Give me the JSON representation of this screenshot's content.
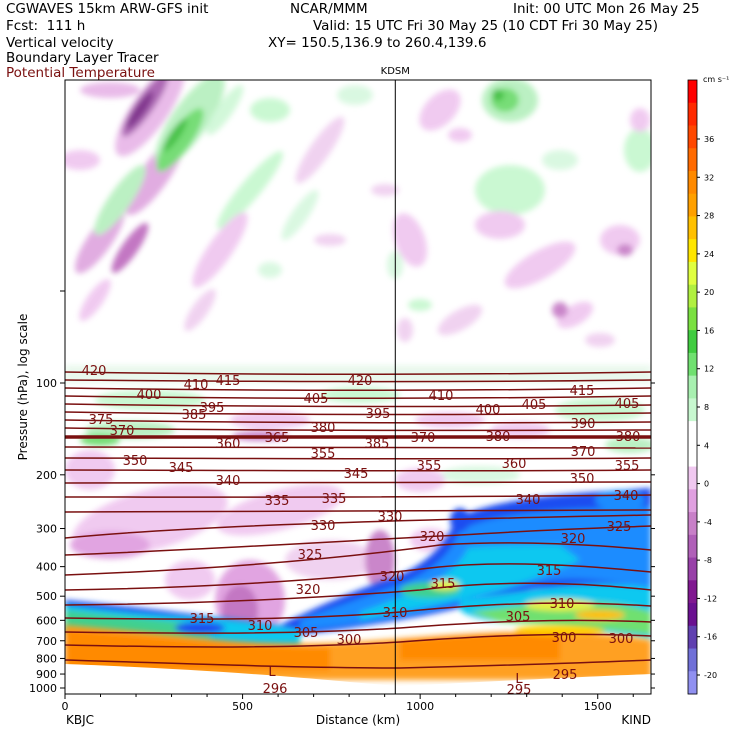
{
  "header": {
    "model": "CGWAVES 15km ARW-GFS init",
    "center": "NCAR/MMM",
    "init": "Init: 00 UTC Mon 26 May 25",
    "fcst": "Fcst:  111 h",
    "valid": "Valid: 15 UTC Fri 30 May 25 (10 CDT Fri 30 May 25)",
    "field1": "Vertical velocity",
    "field2": "Boundary Layer Tracer",
    "field3": "Potential Temperature",
    "xy": "XY= 150.5,136.9 to 260.4,139.6",
    "field3_color": "#7a1010"
  },
  "chart_data": {
    "type": "cross-section",
    "station_label": "KDSM",
    "station_x": 930,
    "ylabel": "Pressure (hPa), log scale",
    "xlabel": "Distance (km)",
    "xlim": [
      0,
      1650
    ],
    "x_ticks": [
      "0",
      "500",
      "1000",
      "1500"
    ],
    "y_ticks": [
      "100",
      "200",
      "300",
      "400",
      "500",
      "600",
      "700",
      "800",
      "900",
      "1000"
    ],
    "left_end_label": "KBJC",
    "right_end_label": "KIND",
    "colorbar": {
      "unit": "cm s⁻¹",
      "labels": [
        "36",
        "32",
        "28",
        "24",
        "20",
        "16",
        "12",
        "8",
        "4",
        "0",
        "-4",
        "-8",
        "-12",
        "-16",
        "-20"
      ],
      "colors": [
        "#ff0000",
        "#ff2a00",
        "#ff4800",
        "#ff6a00",
        "#ff8a00",
        "#ffa000",
        "#ffc000",
        "#ffe600",
        "#e0ff40",
        "#b0f040",
        "#7ae040",
        "#40cc40",
        "#70e070",
        "#a8f0b0",
        "#c8f8d0",
        "#ffffff",
        "#ffffff",
        "#f0c8f0",
        "#e0a0e0",
        "#c880c8",
        "#b060b8",
        "#9840a8",
        "#801890",
        "#6a1090",
        "#6040b0",
        "#7070d8",
        "#9090f0"
      ]
    },
    "theta_labels": [
      {
        "t": "420",
        "x": 94,
        "y": 370
      },
      {
        "t": "410",
        "x": 196,
        "y": 384
      },
      {
        "t": "415",
        "x": 228,
        "y": 380
      },
      {
        "t": "420",
        "x": 360,
        "y": 380
      },
      {
        "t": "400",
        "x": 149,
        "y": 394
      },
      {
        "t": "395",
        "x": 212,
        "y": 407
      },
      {
        "t": "405",
        "x": 316,
        "y": 398
      },
      {
        "t": "410",
        "x": 441,
        "y": 395
      },
      {
        "t": "415",
        "x": 582,
        "y": 390
      },
      {
        "t": "400",
        "x": 488,
        "y": 409
      },
      {
        "t": "405",
        "x": 534,
        "y": 404
      },
      {
        "t": "405",
        "x": 627,
        "y": 403
      },
      {
        "t": "375",
        "x": 101,
        "y": 419
      },
      {
        "t": "385",
        "x": 194,
        "y": 414
      },
      {
        "t": "395",
        "x": 378,
        "y": 413
      },
      {
        "t": "390",
        "x": 583,
        "y": 423
      },
      {
        "t": "370",
        "x": 122,
        "y": 430
      },
      {
        "t": "380",
        "x": 323,
        "y": 427
      },
      {
        "t": "380",
        "x": 628,
        "y": 436
      },
      {
        "t": "380",
        "x": 498,
        "y": 436
      },
      {
        "t": "370",
        "x": 423,
        "y": 437
      },
      {
        "t": "360",
        "x": 228,
        "y": 443
      },
      {
        "t": "365",
        "x": 277,
        "y": 437
      },
      {
        "t": "385",
        "x": 377,
        "y": 443
      },
      {
        "t": "355",
        "x": 323,
        "y": 453
      },
      {
        "t": "370",
        "x": 583,
        "y": 451
      },
      {
        "t": "350",
        "x": 135,
        "y": 460
      },
      {
        "t": "345",
        "x": 181,
        "y": 467
      },
      {
        "t": "355",
        "x": 429,
        "y": 465
      },
      {
        "t": "360",
        "x": 514,
        "y": 463
      },
      {
        "t": "355",
        "x": 627,
        "y": 465
      },
      {
        "t": "340",
        "x": 228,
        "y": 480
      },
      {
        "t": "345",
        "x": 356,
        "y": 473
      },
      {
        "t": "350",
        "x": 582,
        "y": 478
      },
      {
        "t": "335",
        "x": 277,
        "y": 500
      },
      {
        "t": "335",
        "x": 334,
        "y": 498
      },
      {
        "t": "340",
        "x": 528,
        "y": 499
      },
      {
        "t": "340",
        "x": 626,
        "y": 495
      },
      {
        "t": "330",
        "x": 323,
        "y": 525
      },
      {
        "t": "330",
        "x": 390,
        "y": 516
      },
      {
        "t": "325",
        "x": 619,
        "y": 526
      },
      {
        "t": "320",
        "x": 432,
        "y": 536
      },
      {
        "t": "320",
        "x": 573,
        "y": 538
      },
      {
        "t": "325",
        "x": 310,
        "y": 554
      },
      {
        "t": "320",
        "x": 308,
        "y": 589
      },
      {
        "t": "320",
        "x": 392,
        "y": 576
      },
      {
        "t": "315",
        "x": 443,
        "y": 583
      },
      {
        "t": "315",
        "x": 549,
        "y": 570
      },
      {
        "t": "315",
        "x": 202,
        "y": 618
      },
      {
        "t": "310",
        "x": 260,
        "y": 625
      },
      {
        "t": "310",
        "x": 395,
        "y": 612
      },
      {
        "t": "310",
        "x": 562,
        "y": 603
      },
      {
        "t": "305",
        "x": 306,
        "y": 632
      },
      {
        "t": "305",
        "x": 518,
        "y": 616
      },
      {
        "t": "300",
        "x": 349,
        "y": 639
      },
      {
        "t": "300",
        "x": 564,
        "y": 637
      },
      {
        "t": "300",
        "x": 621,
        "y": 638
      },
      {
        "t": "295",
        "x": 565,
        "y": 674
      },
      {
        "t": "296",
        "x": 275,
        "y": 688
      },
      {
        "t": "295",
        "x": 519,
        "y": 689
      }
    ],
    "low_markers": [
      {
        "t": "L",
        "x": 272,
        "y": 671
      },
      {
        "t": "L",
        "x": 519,
        "y": 678
      }
    ]
  }
}
